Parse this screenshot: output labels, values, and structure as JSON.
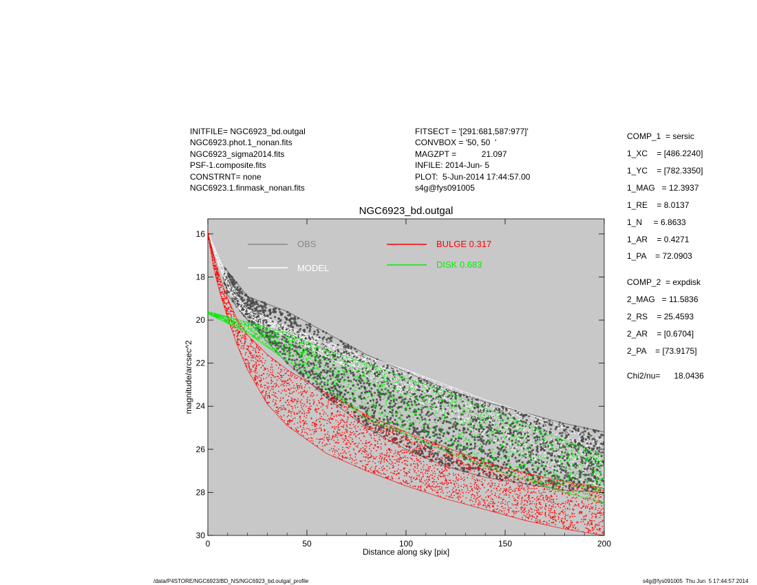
{
  "header_left": [
    "INITFILE= NGC6923_bd.outgal",
    "NGC6923.phot.1_nonan.fits",
    "NGC6923_sigma2014.fits",
    "PSF-1.composite.fits",
    "CONSTRNT= none",
    "NGC6923.1.finmask_nonan.fits"
  ],
  "header_mid": [
    "FITSECT = '[291:681,587:977]'",
    "CONVBOX = '50, 50  '",
    "MAGZPT =           21.097",
    "INFILE: 2014-Jun- 5",
    "PLOT:  5-Jun-2014 17:44:57.00",
    "s4g@fys091005"
  ],
  "params": [
    "COMP_1  = sersic",
    "1_XC    = [486.2240]",
    "1_YC    = [782.3350]",
    "1_MAG   = 12.3937",
    "1_RE    = 8.0137",
    "1_N     = 6.8633",
    "1_AR    = 0.4271",
    "1_PA    = 72.0903",
    "COMP_2  = expdisk",
    "2_MAG   = 11.5836",
    "2_RS    = 25.4593",
    "2_AR    = [0.6704]",
    "2_PA    = [73.9175]",
    "Chi2/nu=      18.0436"
  ],
  "footer_left": "/data/P4STORE/NGC6923/BD_NS/NGC6923_bd.outgal_profile",
  "footer_right": "s4g@fys091005  Thu Jun  5 17:44:57 2014",
  "colors": {
    "plot_bg": "#c8c8c8",
    "obs": "#4a4a4a",
    "model": "#ffffff",
    "bulge": "#ff0000",
    "disk": "#00ee00",
    "obs_legend": "#888888"
  },
  "chart_data": {
    "type": "scatter",
    "title": "NGC6923_bd.outgal",
    "xlabel": "Distance along sky [pix]",
    "ylabel": "magnitude/arcsec^2",
    "xlim": [
      0,
      200
    ],
    "ylim": [
      30,
      15.3
    ],
    "y_inverted": true,
    "xticks": [
      0,
      50,
      100,
      150,
      200
    ],
    "yticks": [
      16,
      18,
      20,
      22,
      24,
      26,
      28,
      30
    ],
    "legend": [
      {
        "label": "OBS",
        "color": "#888888"
      },
      {
        "label": "MODEL",
        "color": "#ffffff"
      },
      {
        "label": "BULGE  0.317",
        "color": "#ff0000"
      },
      {
        "label": "DISK  0.683",
        "color": "#00ee00"
      }
    ],
    "series": [
      {
        "name": "OBS",
        "color": "#4a4a4a",
        "upper_edge": {
          "x": [
            8,
            20,
            40,
            60,
            80,
            100,
            120,
            140,
            160,
            180,
            200
          ],
          "y": [
            17.5,
            18.9,
            19.6,
            20.6,
            21.6,
            22.4,
            23.2,
            23.8,
            24.3,
            24.8,
            25.2
          ]
        },
        "lower_edge": {
          "x": [
            8,
            20,
            40,
            60,
            80,
            100,
            120,
            140,
            160,
            180,
            200
          ],
          "y": [
            18.6,
            20.0,
            22.0,
            23.6,
            25.0,
            26.0,
            26.8,
            27.3,
            27.6,
            27.9,
            28.0
          ]
        }
      },
      {
        "name": "MODEL",
        "color": "#ffffff",
        "upper_edge": {
          "x": [
            0,
            5,
            10,
            15,
            20,
            40,
            60,
            80,
            100,
            120,
            140,
            160,
            180,
            200
          ],
          "y": [
            15.9,
            17.0,
            18.0,
            18.9,
            19.5,
            20.3,
            21.0,
            21.7,
            22.3,
            23.0,
            23.7,
            24.3,
            25.0,
            25.6
          ]
        },
        "lower_edge": {
          "x": [
            0,
            5,
            10,
            15,
            20,
            40,
            60,
            80,
            100,
            120,
            140,
            160,
            180,
            200
          ],
          "y": [
            16.0,
            17.3,
            18.5,
            19.4,
            19.9,
            20.8,
            21.7,
            22.6,
            23.5,
            24.4,
            25.4,
            26.3,
            27.1,
            27.8
          ]
        }
      },
      {
        "name": "BULGE  0.317",
        "color": "#ff0000",
        "upper_edge": {
          "x": [
            0,
            3,
            6,
            10,
            15,
            20,
            30,
            40,
            60,
            80,
            100,
            120,
            140,
            160,
            180,
            200
          ],
          "y": [
            15.9,
            17.0,
            18.0,
            19.0,
            20.0,
            20.7,
            21.6,
            22.3,
            23.4,
            24.4,
            25.2,
            25.9,
            26.6,
            27.1,
            27.5,
            27.8
          ]
        },
        "lower_edge": {
          "x": [
            0,
            3,
            6,
            10,
            15,
            20,
            30,
            40,
            60,
            80,
            100,
            120,
            140,
            160,
            180,
            200
          ],
          "y": [
            16.0,
            17.6,
            18.7,
            19.9,
            21.2,
            22.3,
            23.9,
            24.9,
            26.2,
            27.0,
            27.7,
            28.3,
            28.8,
            29.3,
            29.7,
            30.0
          ]
        }
      },
      {
        "name": "DISK  0.683",
        "color": "#00ee00",
        "upper_edge": {
          "x": [
            0,
            20,
            40,
            60,
            80,
            100,
            120,
            140,
            160,
            180,
            200
          ],
          "y": [
            19.6,
            20.1,
            20.6,
            21.4,
            22.0,
            22.7,
            23.3,
            24.1,
            24.8,
            25.6,
            26.3
          ]
        },
        "lower_edge": {
          "x": [
            0,
            20,
            40,
            60,
            80,
            100,
            120,
            140,
            160,
            180,
            200
          ],
          "y": [
            19.7,
            20.6,
            21.9,
            23.2,
            24.6,
            25.3,
            26.1,
            26.8,
            27.4,
            28.0,
            28.5
          ]
        }
      }
    ]
  }
}
